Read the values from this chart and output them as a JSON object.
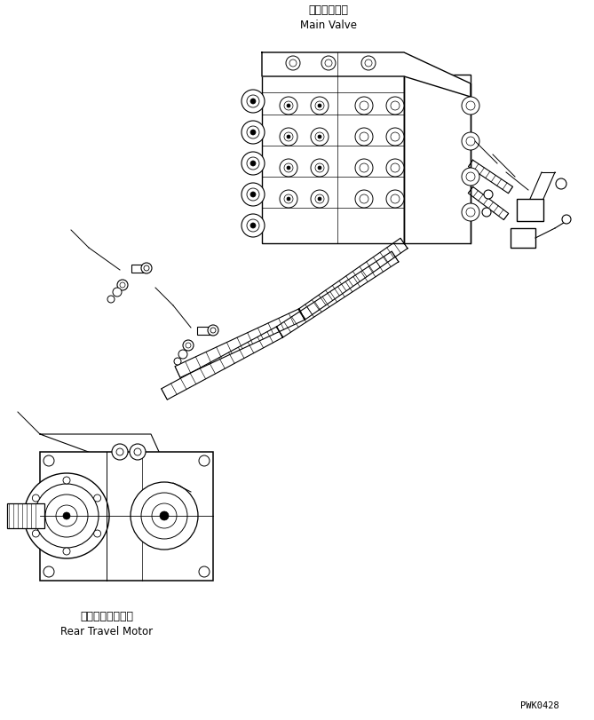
{
  "title": "",
  "background_color": "#ffffff",
  "line_color": "#000000",
  "main_valve_label_jp": "メインバルブ",
  "main_valve_label_en": "Main Valve",
  "motor_label_jp": "リヤー走行モータ",
  "motor_label_en": "Rear Travel Motor",
  "part_code": "PWK0428",
  "fig_width": 6.69,
  "fig_height": 8.12,
  "dpi": 100
}
